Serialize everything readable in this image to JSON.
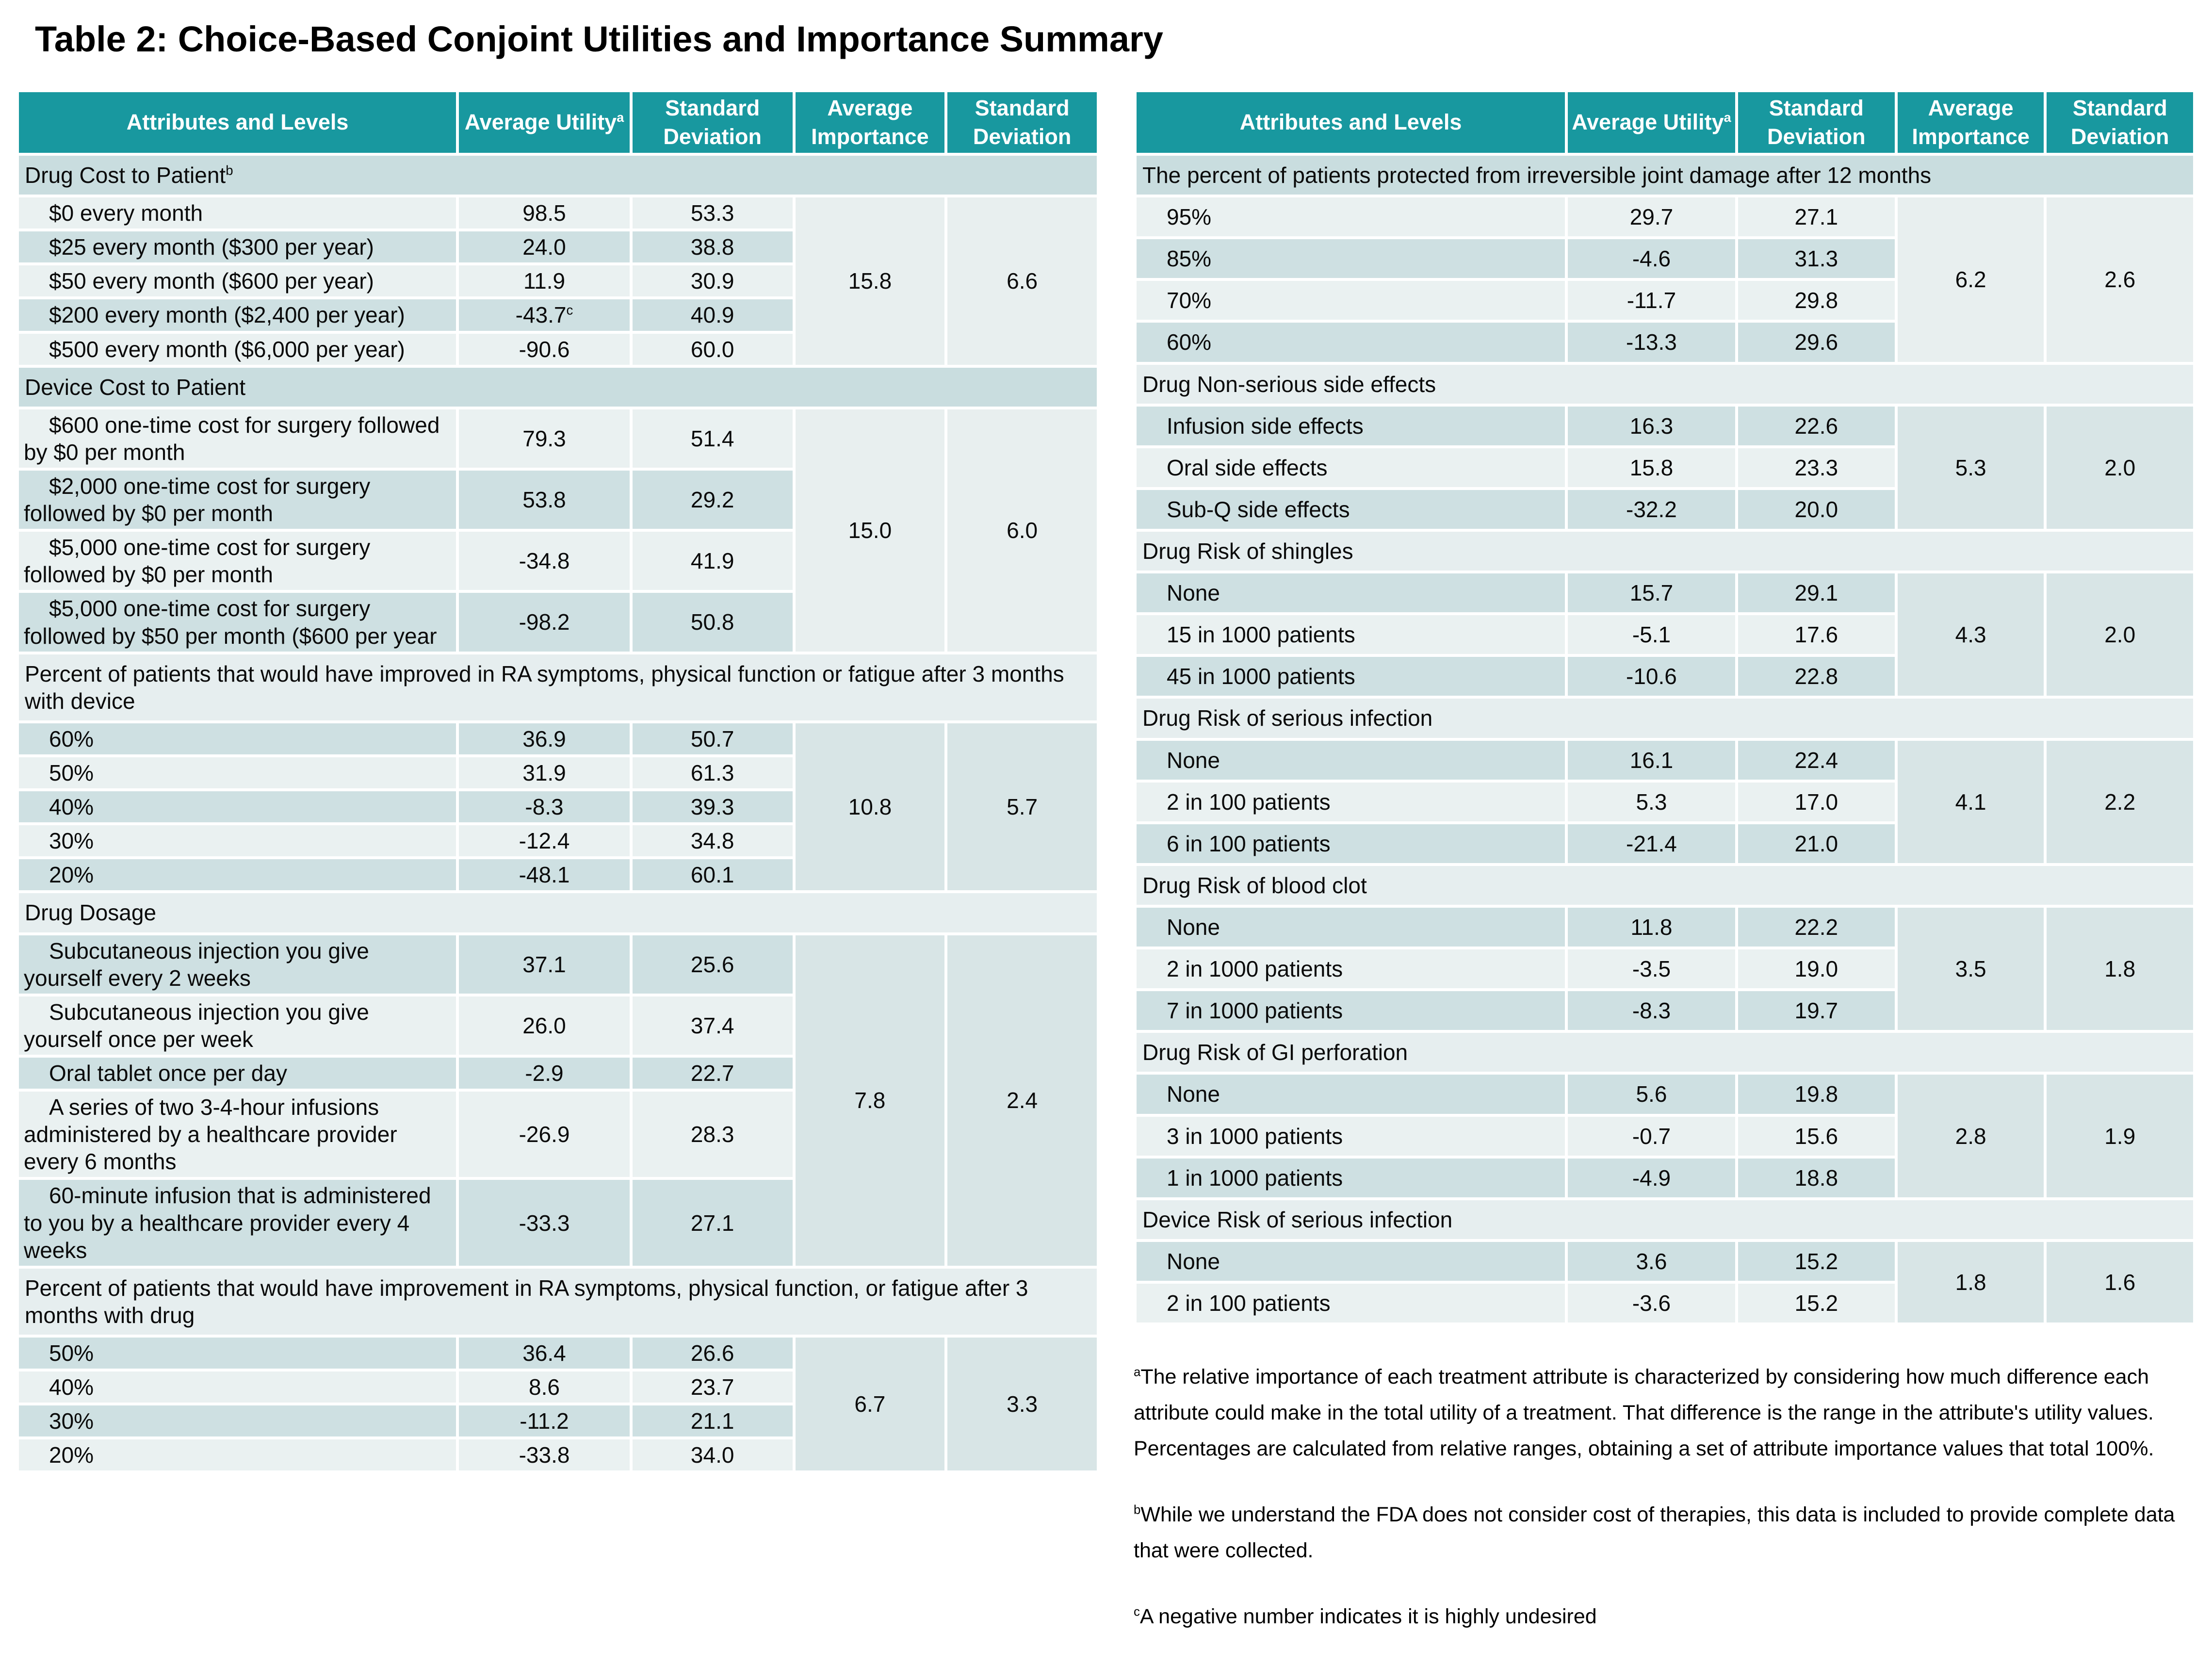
{
  "title": "Table 2: Choice-Based Conjoint Utilities and Importance Summary",
  "columns": [
    "Attributes and Levels",
    "Average Utility",
    "Standard Deviation",
    "Average Importance",
    "Standard Deviation"
  ],
  "utility_superscript": "a",
  "colors": {
    "header_teal": "#18989F",
    "row_light": "#EAF1F1",
    "row_dark": "#CEE0E2",
    "band_dark": "#C9DDDF",
    "band_light": "#E6EEEF",
    "merged_light": "#E8EFEF",
    "merged_dark": "#D8E5E6",
    "text": "#0A0A0A",
    "background": "#FFFFFF"
  },
  "tables": {
    "left": {
      "sections": [
        {
          "name": "Drug Cost to Patient",
          "name_sup": "b",
          "shade": "A",
          "importance": "15.8",
          "importance_sd": "6.6",
          "rows": [
            {
              "label": "$0 every month",
              "utility": "98.5",
              "sd": "53.3"
            },
            {
              "label": "$25 every month ($300 per year)",
              "utility": "24.0",
              "sd": "38.8"
            },
            {
              "label": "$50 every month ($600 per year)",
              "utility": "11.9",
              "sd": "30.9"
            },
            {
              "label": "$200 every month ($2,400 per year)",
              "utility": "-43.7",
              "utility_sup": "c",
              "sd": "40.9"
            },
            {
              "label": "$500 every month ($6,000 per year)",
              "utility": "-90.6",
              "sd": "60.0"
            }
          ]
        },
        {
          "name": "Device Cost to Patient",
          "shade": "A",
          "importance": "15.0",
          "importance_sd": "6.0",
          "rows": [
            {
              "label": "$600 one-time cost for surgery followed by $0 per month",
              "utility": "79.3",
              "sd": "51.4"
            },
            {
              "label": "$2,000 one-time cost for surgery followed by $0 per month",
              "utility": "53.8",
              "sd": "29.2"
            },
            {
              "label": "$5,000 one-time cost for surgery followed by $0 per month",
              "utility": "-34.8",
              "sd": "41.9"
            },
            {
              "label": "$5,000 one-time cost for surgery followed by $50 per month ($600 per year",
              "utility": "-98.2",
              "sd": "50.8"
            }
          ]
        },
        {
          "name": "Percent of patients that would have improved in RA symptoms, physical function or fatigue after 3 months with device",
          "shade": "B",
          "importance": "10.8",
          "importance_sd": "5.7",
          "rows": [
            {
              "label": "60%",
              "utility": "36.9",
              "sd": "50.7"
            },
            {
              "label": "50%",
              "utility": "31.9",
              "sd": "61.3"
            },
            {
              "label": "40%",
              "utility": "-8.3",
              "sd": "39.3"
            },
            {
              "label": "30%",
              "utility": "-12.4",
              "sd": "34.8"
            },
            {
              "label": "20%",
              "utility": "-48.1",
              "sd": "60.1"
            }
          ]
        },
        {
          "name": "Drug Dosage",
          "shade": "B",
          "importance": "7.8",
          "importance_sd": "2.4",
          "rows": [
            {
              "label": "Subcutaneous injection you give yourself every 2 weeks",
              "utility": "37.1",
              "sd": "25.6"
            },
            {
              "label": "Subcutaneous injection you give yourself once per week",
              "utility": "26.0",
              "sd": "37.4"
            },
            {
              "label": "Oral tablet once per day",
              "utility": "-2.9",
              "sd": "22.7"
            },
            {
              "label": "A series of two 3-4-hour infusions administered by a healthcare provider every 6 months",
              "utility": "-26.9",
              "sd": "28.3"
            },
            {
              "label": "60-minute infusion that is administered to you by a healthcare provider every 4 weeks",
              "utility": "-33.3",
              "sd": "27.1"
            }
          ]
        },
        {
          "name": "Percent of patients that would have improvement in RA symptoms, physical function, or fatigue after 3 months with drug",
          "shade": "B",
          "importance": "6.7",
          "importance_sd": "3.3",
          "rows": [
            {
              "label": "50%",
              "utility": "36.4",
              "sd": "26.6"
            },
            {
              "label": "40%",
              "utility": "8.6",
              "sd": "23.7"
            },
            {
              "label": "30%",
              "utility": "-11.2",
              "sd": "21.1"
            },
            {
              "label": "20%",
              "utility": "-33.8",
              "sd": "34.0"
            }
          ]
        }
      ]
    },
    "right": {
      "sections": [
        {
          "name": "The percent of patients protected from irreversible joint damage after 12 months",
          "shade": "A",
          "importance": "6.2",
          "importance_sd": "2.6",
          "rows": [
            {
              "label": "95%",
              "utility": "29.7",
              "sd": "27.1"
            },
            {
              "label": "85%",
              "utility": "-4.6",
              "sd": "31.3"
            },
            {
              "label": "70%",
              "utility": "-11.7",
              "sd": "29.8"
            },
            {
              "label": "60%",
              "utility": "-13.3",
              "sd": "29.6"
            }
          ]
        },
        {
          "name": "Drug Non-serious side effects",
          "shade": "B",
          "importance": "5.3",
          "importance_sd": "2.0",
          "rows": [
            {
              "label": "Infusion side effects",
              "utility": "16.3",
              "sd": "22.6"
            },
            {
              "label": "Oral side effects",
              "utility": "15.8",
              "sd": "23.3"
            },
            {
              "label": "Sub-Q side effects",
              "utility": "-32.2",
              "sd": "20.0"
            }
          ]
        },
        {
          "name": "Drug Risk of shingles",
          "shade": "B",
          "importance": "4.3",
          "importance_sd": "2.0",
          "rows": [
            {
              "label": "None",
              "utility": "15.7",
              "sd": "29.1"
            },
            {
              "label": "15 in 1000 patients",
              "utility": "-5.1",
              "sd": "17.6"
            },
            {
              "label": "45 in 1000 patients",
              "utility": "-10.6",
              "sd": "22.8"
            }
          ]
        },
        {
          "name": "Drug Risk of serious infection",
          "shade": "B",
          "importance": "4.1",
          "importance_sd": "2.2",
          "rows": [
            {
              "label": "None",
              "utility": "16.1",
              "sd": "22.4"
            },
            {
              "label": "2 in 100 patients",
              "utility": "5.3",
              "sd": "17.0"
            },
            {
              "label": "6 in 100 patients",
              "utility": "-21.4",
              "sd": "21.0"
            }
          ]
        },
        {
          "name": "Drug Risk of blood clot",
          "shade": "B",
          "importance": "3.5",
          "importance_sd": "1.8",
          "rows": [
            {
              "label": "None",
              "utility": "11.8",
              "sd": "22.2"
            },
            {
              "label": "2 in 1000 patients",
              "utility": "-3.5",
              "sd": "19.0"
            },
            {
              "label": "7 in 1000 patients",
              "utility": "-8.3",
              "sd": "19.7"
            }
          ]
        },
        {
          "name": "Drug Risk of GI perforation",
          "shade": "B",
          "importance": "2.8",
          "importance_sd": "1.9",
          "rows": [
            {
              "label": "None",
              "utility": "5.6",
              "sd": "19.8"
            },
            {
              "label": "3 in 1000 patients",
              "utility": "-0.7",
              "sd": "15.6"
            },
            {
              "label": "1 in 1000 patients",
              "utility": "-4.9",
              "sd": "18.8"
            }
          ]
        },
        {
          "name": "Device Risk of serious infection",
          "shade": "B",
          "importance": "1.8",
          "importance_sd": "1.6",
          "rows": [
            {
              "label": "None",
              "utility": "3.6",
              "sd": "15.2"
            },
            {
              "label": "2 in 100 patients",
              "utility": "-3.6",
              "sd": "15.2"
            }
          ]
        }
      ]
    }
  },
  "footnotes": [
    {
      "marker": "a",
      "text": "The relative importance of each treatment attribute is characterized by considering how much difference each attribute could make in the total utility of a treatment. That difference is the range in the attribute's utility values. Percentages are calculated from relative ranges, obtaining a set of attribute importance values that total 100%."
    },
    {
      "marker": "b",
      "text": "While we understand the FDA does not consider cost of therapies, this data is included to provide complete data that were collected."
    },
    {
      "marker": "c",
      "text": "A negative number indicates it is highly undesired"
    }
  ]
}
